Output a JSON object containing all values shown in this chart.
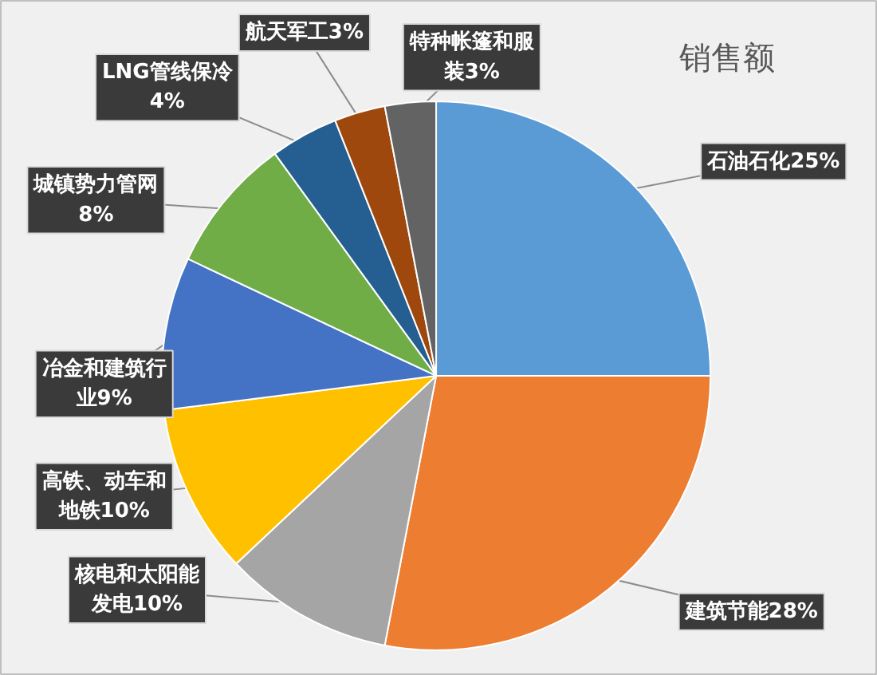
{
  "chart_data": {
    "type": "pie",
    "title": "销售额",
    "categories": [
      "石油石化",
      "建筑节能",
      "核电和太阳能发电",
      "高铁、动车和地铁",
      "冶金和建筑行业",
      "城镇势力管网",
      "LNG管线保冷",
      "航天军工",
      "特种帐篷和服装"
    ],
    "values": [
      25,
      28,
      10,
      10,
      9,
      8,
      4,
      3,
      3
    ],
    "value_labels": [
      "25%",
      "28%",
      "10%",
      "10%",
      "9%",
      "8%",
      "4%",
      "3%",
      "3%"
    ],
    "colors": [
      "#5b9bd5",
      "#ed7d31",
      "#a5a5a5",
      "#ffc000",
      "#4472c4",
      "#70ad47",
      "#255e91",
      "#9e480e",
      "#636363"
    ]
  }
}
